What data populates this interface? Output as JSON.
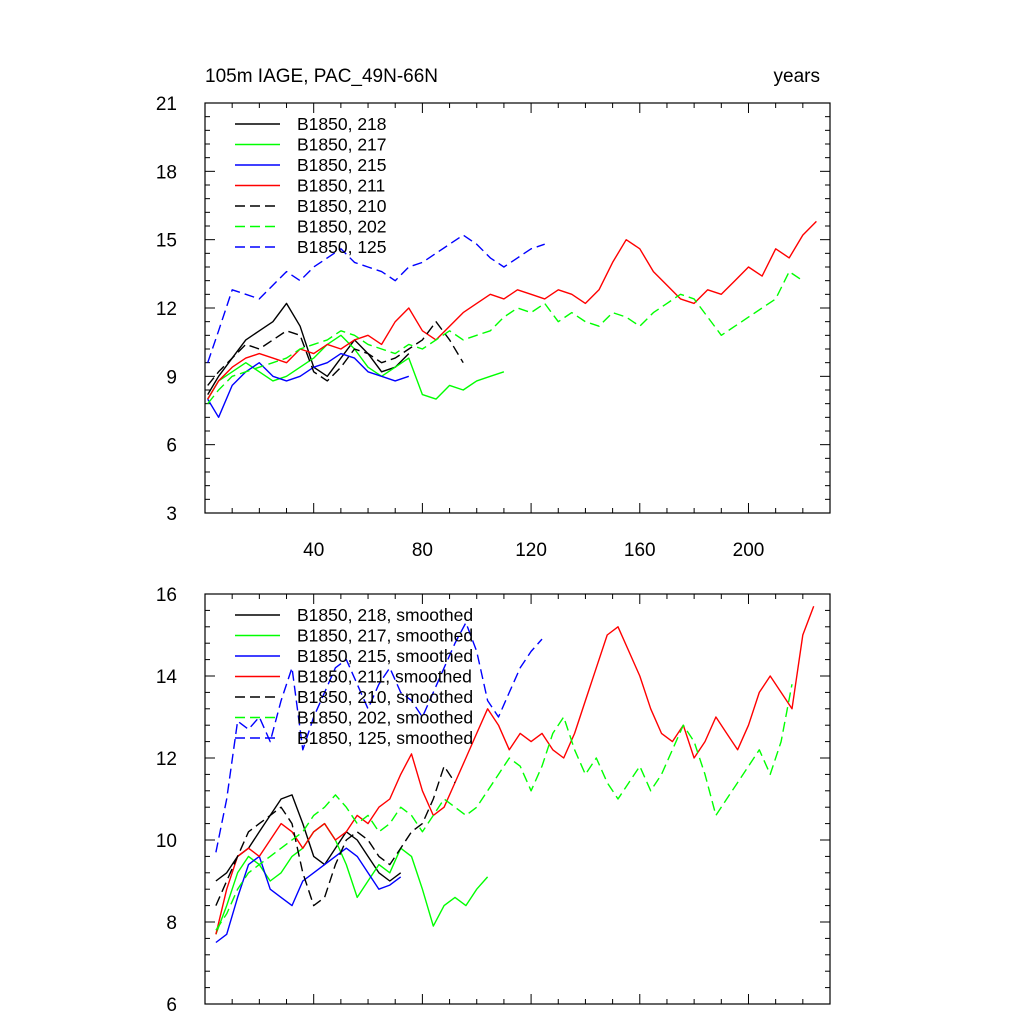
{
  "chart_data": [
    {
      "type": "line",
      "title": "105m IAGE, PAC_49N-66N",
      "units": "years",
      "xlabel": "",
      "ylabel": "",
      "xlim": [
        0,
        230
      ],
      "ylim": [
        3,
        21
      ],
      "xticks": [
        40,
        80,
        120,
        160,
        200
      ],
      "yticks": [
        3,
        6,
        9,
        12,
        15,
        18,
        21
      ],
      "legend_position": "top-left",
      "series": [
        {
          "name": "B1850, 218",
          "color": "#000000",
          "dash": "solid",
          "x": [
            1,
            5,
            10,
            15,
            20,
            25,
            30,
            35,
            40,
            45,
            50,
            55,
            60,
            65,
            70,
            75
          ],
          "values": [
            8.2,
            9.0,
            9.8,
            10.6,
            11.0,
            11.4,
            12.2,
            11.2,
            9.4,
            9.0,
            9.8,
            10.6,
            10.0,
            9.2,
            9.4,
            10.0
          ]
        },
        {
          "name": "B1850, 217",
          "color": "#00ff00",
          "dash": "solid",
          "x": [
            1,
            5,
            10,
            15,
            20,
            25,
            30,
            35,
            40,
            45,
            50,
            55,
            60,
            65,
            70,
            75,
            80,
            85,
            90,
            95,
            100,
            105,
            110
          ],
          "values": [
            8.0,
            8.8,
            9.2,
            9.6,
            9.2,
            8.8,
            9.0,
            9.4,
            9.8,
            10.4,
            10.8,
            10.2,
            9.4,
            9.0,
            9.4,
            9.8,
            8.2,
            8.0,
            8.6,
            8.4,
            8.8,
            9.0,
            9.2
          ]
        },
        {
          "name": "B1850, 215",
          "color": "#0000ff",
          "dash": "solid",
          "x": [
            1,
            5,
            10,
            15,
            20,
            25,
            30,
            35,
            40,
            45,
            50,
            55,
            60,
            65,
            70,
            75
          ],
          "values": [
            8.0,
            7.2,
            8.6,
            9.2,
            9.6,
            9.0,
            8.8,
            9.0,
            9.4,
            9.6,
            10.0,
            9.8,
            9.2,
            9.0,
            8.8,
            9.0
          ]
        },
        {
          "name": "B1850, 211",
          "color": "#ff0000",
          "dash": "solid",
          "x": [
            1,
            5,
            10,
            15,
            20,
            25,
            30,
            35,
            40,
            45,
            50,
            55,
            60,
            65,
            70,
            75,
            80,
            85,
            90,
            95,
            100,
            105,
            110,
            115,
            120,
            125,
            130,
            135,
            140,
            145,
            150,
            155,
            160,
            165,
            170,
            175,
            180,
            185,
            190,
            195,
            200,
            205,
            210,
            215,
            220,
            225
          ],
          "values": [
            8.0,
            8.8,
            9.4,
            9.8,
            10.0,
            9.8,
            9.6,
            10.2,
            10.0,
            10.4,
            10.2,
            10.6,
            10.8,
            10.4,
            11.4,
            12.0,
            11.0,
            10.6,
            11.2,
            11.8,
            12.2,
            12.6,
            12.4,
            12.8,
            12.6,
            12.4,
            12.8,
            12.6,
            12.2,
            12.8,
            14.0,
            15.0,
            14.6,
            13.6,
            13.0,
            12.4,
            12.2,
            12.8,
            12.6,
            13.2,
            13.8,
            13.4,
            14.6,
            14.2,
            15.2,
            15.8
          ]
        },
        {
          "name": "B1850, 210",
          "color": "#000000",
          "dash": "dashed",
          "x": [
            1,
            5,
            10,
            15,
            20,
            25,
            30,
            35,
            40,
            45,
            50,
            55,
            60,
            65,
            70,
            75,
            80,
            85,
            90,
            95
          ],
          "values": [
            8.6,
            9.2,
            9.8,
            10.4,
            10.2,
            10.6,
            11.0,
            10.8,
            9.2,
            8.8,
            9.4,
            10.2,
            10.0,
            9.6,
            9.8,
            10.2,
            10.6,
            11.4,
            10.6,
            9.6
          ]
        },
        {
          "name": "B1850, 202",
          "color": "#00ff00",
          "dash": "dashed",
          "x": [
            1,
            5,
            10,
            15,
            20,
            25,
            30,
            35,
            40,
            45,
            50,
            55,
            60,
            65,
            70,
            75,
            80,
            85,
            90,
            95,
            100,
            105,
            110,
            115,
            120,
            125,
            130,
            135,
            140,
            145,
            150,
            155,
            160,
            165,
            170,
            175,
            180,
            185,
            190,
            195,
            200,
            205,
            210,
            215,
            220
          ],
          "values": [
            7.8,
            8.4,
            9.0,
            9.2,
            9.4,
            9.6,
            9.8,
            10.2,
            10.4,
            10.6,
            11.0,
            10.8,
            10.4,
            10.2,
            10.0,
            10.4,
            10.2,
            10.6,
            11.0,
            10.6,
            10.8,
            11.0,
            11.6,
            12.0,
            11.8,
            12.2,
            11.4,
            11.8,
            11.4,
            11.2,
            11.8,
            11.6,
            11.2,
            11.8,
            12.2,
            12.6,
            12.4,
            11.6,
            10.8,
            11.2,
            11.6,
            12.0,
            12.4,
            13.6,
            13.2
          ]
        },
        {
          "name": "B1850, 125",
          "color": "#0000ff",
          "dash": "dashed",
          "x": [
            1,
            5,
            10,
            15,
            20,
            25,
            30,
            35,
            40,
            45,
            50,
            55,
            60,
            65,
            70,
            75,
            80,
            85,
            90,
            95,
            100,
            105,
            110,
            115,
            120,
            125
          ],
          "values": [
            9.6,
            11.0,
            12.8,
            12.6,
            12.4,
            13.0,
            13.6,
            13.2,
            13.8,
            14.2,
            14.6,
            14.0,
            13.8,
            13.6,
            13.2,
            13.8,
            14.0,
            14.4,
            14.8,
            15.2,
            14.8,
            14.2,
            13.8,
            14.2,
            14.6,
            14.8
          ]
        }
      ]
    },
    {
      "type": "line",
      "title": "",
      "xlabel": "",
      "ylabel": "",
      "xlim": [
        0,
        230
      ],
      "ylim": [
        6,
        16
      ],
      "yticks": [
        6,
        8,
        10,
        12,
        14,
        16
      ],
      "legend_position": "top-left",
      "series": [
        {
          "name": "B1850, 218, smoothed",
          "color": "#000000",
          "dash": "solid",
          "x": [
            4,
            8,
            12,
            16,
            20,
            24,
            28,
            32,
            36,
            40,
            44,
            48,
            52,
            56,
            60,
            64,
            68,
            72
          ],
          "values": [
            9.0,
            9.2,
            9.6,
            9.8,
            10.2,
            10.6,
            11.0,
            11.1,
            10.4,
            9.6,
            9.4,
            9.8,
            10.2,
            10.0,
            9.6,
            9.2,
            9.0,
            9.2
          ]
        },
        {
          "name": "B1850, 217, smoothed",
          "color": "#00ff00",
          "dash": "solid",
          "x": [
            4,
            8,
            12,
            16,
            20,
            24,
            28,
            32,
            36,
            40,
            44,
            48,
            52,
            56,
            60,
            64,
            68,
            72,
            76,
            80,
            84,
            88,
            92,
            96,
            100,
            104
          ],
          "values": [
            7.7,
            8.4,
            9.2,
            9.6,
            9.4,
            9.0,
            9.2,
            9.6,
            9.8,
            10.2,
            10.4,
            10.0,
            9.4,
            8.6,
            9.0,
            9.4,
            9.2,
            9.8,
            9.6,
            8.8,
            7.9,
            8.4,
            8.6,
            8.4,
            8.8,
            9.1
          ]
        },
        {
          "name": "B1850, 215, smoothed",
          "color": "#0000ff",
          "dash": "solid",
          "x": [
            4,
            8,
            12,
            16,
            20,
            24,
            28,
            32,
            36,
            40,
            44,
            48,
            52,
            56,
            60,
            64,
            68,
            72
          ],
          "values": [
            7.5,
            7.7,
            8.6,
            9.4,
            9.6,
            8.8,
            8.6,
            8.4,
            9.0,
            9.2,
            9.4,
            9.6,
            9.8,
            9.6,
            9.2,
            8.8,
            8.9,
            9.1
          ]
        },
        {
          "name": "B1850, 211, smoothed",
          "color": "#ff0000",
          "dash": "solid",
          "x": [
            4,
            8,
            12,
            16,
            20,
            24,
            28,
            32,
            36,
            40,
            44,
            48,
            52,
            56,
            60,
            64,
            68,
            72,
            76,
            80,
            84,
            88,
            92,
            96,
            100,
            104,
            108,
            112,
            116,
            120,
            124,
            128,
            132,
            136,
            140,
            144,
            148,
            152,
            156,
            160,
            164,
            168,
            172,
            176,
            180,
            184,
            188,
            192,
            196,
            200,
            204,
            208,
            212,
            216,
            220,
            224
          ],
          "values": [
            7.7,
            8.8,
            9.6,
            9.8,
            9.6,
            10.0,
            10.4,
            10.2,
            9.8,
            10.2,
            10.4,
            10.0,
            10.2,
            10.6,
            10.4,
            10.8,
            11.0,
            11.6,
            12.1,
            11.2,
            10.6,
            10.8,
            11.4,
            12.0,
            12.6,
            13.2,
            12.8,
            12.2,
            12.6,
            12.4,
            12.6,
            12.2,
            12.0,
            12.6,
            13.4,
            14.2,
            15.0,
            15.2,
            14.6,
            14.0,
            13.2,
            12.6,
            12.4,
            12.8,
            12.0,
            12.4,
            13.0,
            12.6,
            12.2,
            12.8,
            13.6,
            14.0,
            13.6,
            13.2,
            15.0,
            15.7
          ]
        },
        {
          "name": "B1850, 210, smoothed",
          "color": "#000000",
          "dash": "dashed",
          "x": [
            4,
            8,
            12,
            16,
            20,
            24,
            28,
            32,
            36,
            40,
            44,
            48,
            52,
            56,
            60,
            64,
            68,
            72,
            76,
            80,
            84,
            88,
            92
          ],
          "values": [
            8.4,
            9.0,
            9.6,
            10.2,
            10.4,
            10.6,
            10.8,
            10.4,
            9.2,
            8.4,
            8.6,
            9.4,
            10.0,
            10.2,
            10.0,
            9.6,
            9.4,
            9.8,
            10.2,
            10.4,
            11.0,
            11.8,
            11.4
          ]
        },
        {
          "name": "B1850, 202, smoothed",
          "color": "#00ff00",
          "dash": "dashed",
          "x": [
            4,
            8,
            12,
            16,
            20,
            24,
            28,
            32,
            36,
            40,
            44,
            48,
            52,
            56,
            60,
            64,
            68,
            72,
            76,
            80,
            84,
            88,
            92,
            96,
            100,
            104,
            108,
            112,
            116,
            120,
            124,
            128,
            132,
            136,
            140,
            144,
            148,
            152,
            156,
            160,
            164,
            168,
            172,
            176,
            180,
            184,
            188,
            192,
            196,
            200,
            204,
            208,
            212,
            216
          ],
          "values": [
            7.8,
            8.2,
            8.8,
            9.2,
            9.4,
            9.6,
            9.8,
            10.0,
            10.2,
            10.6,
            10.8,
            11.1,
            10.8,
            10.4,
            10.6,
            10.2,
            10.4,
            10.8,
            10.6,
            10.2,
            10.6,
            11.0,
            10.8,
            10.6,
            10.8,
            11.2,
            11.6,
            12.0,
            11.8,
            11.2,
            11.8,
            12.6,
            13.0,
            12.2,
            11.6,
            12.0,
            11.4,
            11.0,
            11.4,
            11.8,
            11.2,
            11.6,
            12.2,
            12.8,
            12.4,
            11.6,
            10.6,
            11.0,
            11.4,
            11.8,
            12.2,
            11.6,
            12.4,
            13.8
          ]
        },
        {
          "name": "B1850, 125, smoothed",
          "color": "#0000ff",
          "dash": "dashed",
          "x": [
            4,
            8,
            12,
            16,
            20,
            24,
            28,
            32,
            36,
            40,
            44,
            48,
            52,
            56,
            60,
            64,
            68,
            72,
            76,
            80,
            84,
            88,
            92,
            96,
            100,
            104,
            108,
            112,
            116,
            120,
            124
          ],
          "values": [
            9.7,
            11.0,
            12.9,
            12.7,
            13.0,
            12.4,
            13.4,
            14.2,
            12.2,
            13.0,
            13.6,
            14.2,
            14.4,
            13.8,
            13.2,
            13.8,
            14.2,
            13.6,
            13.4,
            13.0,
            13.6,
            14.2,
            14.8,
            15.3,
            14.6,
            13.4,
            13.0,
            13.6,
            14.2,
            14.6,
            14.9
          ]
        }
      ]
    }
  ]
}
